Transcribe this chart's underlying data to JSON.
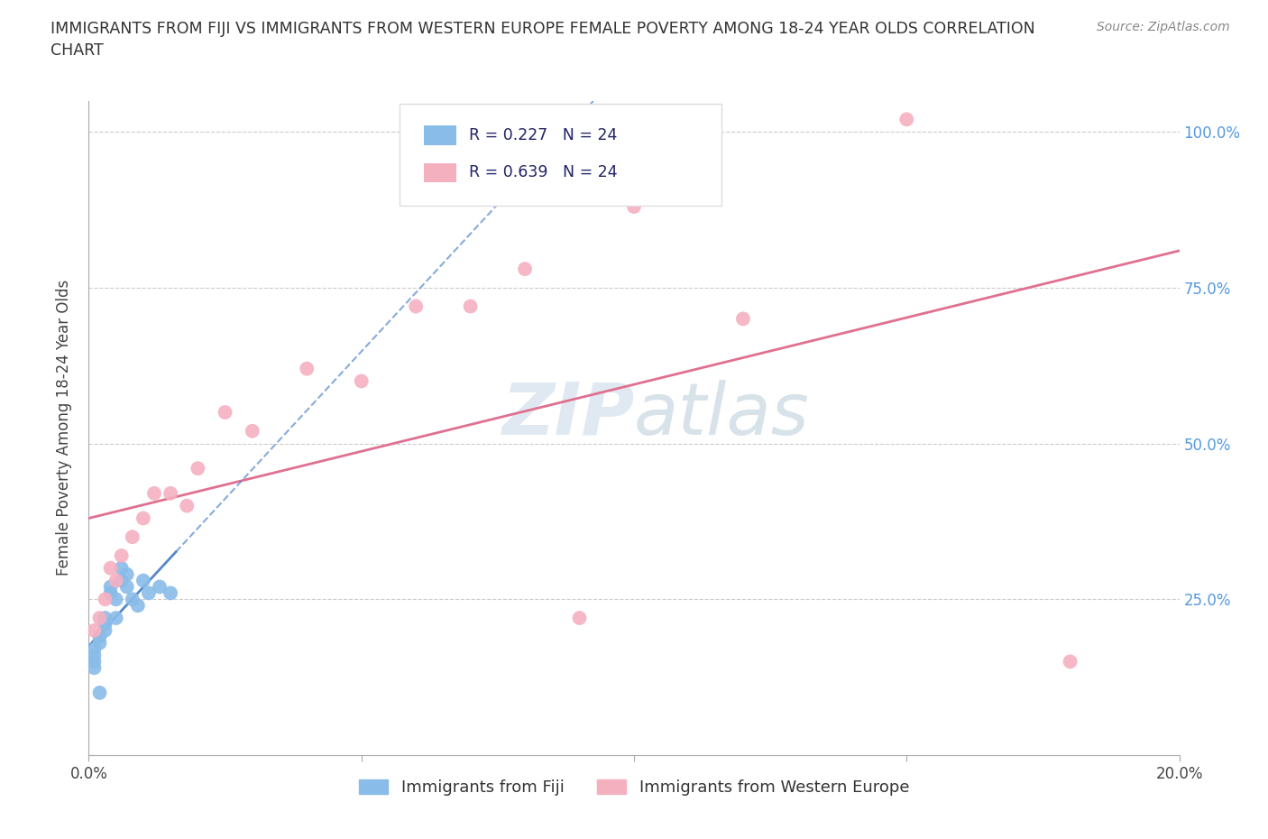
{
  "title": "IMMIGRANTS FROM FIJI VS IMMIGRANTS FROM WESTERN EUROPE FEMALE POVERTY AMONG 18-24 YEAR OLDS CORRELATION\nCHART",
  "source": "Source: ZipAtlas.com",
  "ylabel": "Female Poverty Among 18-24 Year Olds",
  "fiji_color": "#89bce8",
  "we_color": "#f5b0c0",
  "fiji_R": 0.227,
  "fiji_N": 24,
  "we_R": 0.639,
  "we_N": 24,
  "fiji_line_color": "#5588cc",
  "we_line_color": "#e07090",
  "xmin": 0.0,
  "xmax": 0.2,
  "ymin": 0.0,
  "ymax": 1.05,
  "fiji_scatter_x": [
    0.001,
    0.001,
    0.001,
    0.001,
    0.002,
    0.002,
    0.002,
    0.003,
    0.003,
    0.003,
    0.004,
    0.004,
    0.005,
    0.005,
    0.006,
    0.006,
    0.007,
    0.007,
    0.008,
    0.009,
    0.01,
    0.011,
    0.013,
    0.015
  ],
  "fiji_scatter_y": [
    0.14,
    0.15,
    0.16,
    0.17,
    0.18,
    0.19,
    0.1,
    0.2,
    0.22,
    0.21,
    0.26,
    0.27,
    0.22,
    0.25,
    0.28,
    0.3,
    0.29,
    0.27,
    0.25,
    0.24,
    0.28,
    0.26,
    0.27,
    0.26
  ],
  "we_scatter_x": [
    0.001,
    0.002,
    0.003,
    0.004,
    0.005,
    0.006,
    0.008,
    0.01,
    0.012,
    0.015,
    0.018,
    0.02,
    0.025,
    0.03,
    0.04,
    0.05,
    0.06,
    0.07,
    0.08,
    0.09,
    0.1,
    0.12,
    0.15,
    0.18
  ],
  "we_scatter_y": [
    0.2,
    0.22,
    0.25,
    0.3,
    0.28,
    0.32,
    0.35,
    0.38,
    0.42,
    0.42,
    0.4,
    0.46,
    0.55,
    0.52,
    0.62,
    0.6,
    0.72,
    0.72,
    0.78,
    0.22,
    0.88,
    0.7,
    1.02,
    0.15
  ],
  "legend_fiji_label": "Immigrants from Fiji",
  "legend_we_label": "Immigrants from Western Europe",
  "background_color": "#ffffff",
  "grid_color": "#cccccc",
  "right_tick_color": "#5599dd"
}
